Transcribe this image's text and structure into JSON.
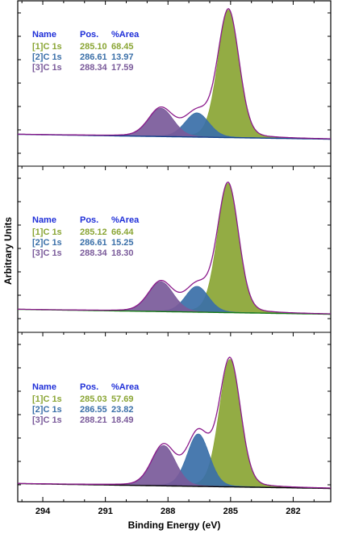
{
  "chart_data": {
    "type": "area",
    "xlabel": "Binding Energy (eV)",
    "ylabel": "Arbitrary Units",
    "x_reversed": true,
    "xlim": [
      295.2,
      280.2
    ],
    "xticks": [
      294,
      291,
      288,
      285,
      282
    ],
    "legend_headers": [
      "Name",
      "Pos.",
      "%Area"
    ],
    "colors": {
      "C1": "#8aa534",
      "C2": "#3a6fa8",
      "C3": "#7a5a9a",
      "envelope": "#8b1a8b",
      "background": [
        "#0e3f8a",
        "#137a13",
        "#000000"
      ]
    },
    "panels": [
      {
        "components": [
          {
            "name": "[1]C 1s",
            "pos": "285.10",
            "area": "68.45",
            "center": 285.1,
            "height": 158,
            "fwhm": 1.2
          },
          {
            "name": "[2]C 1s",
            "pos": "286.61",
            "area": "13.97",
            "center": 286.61,
            "height": 30,
            "fwhm": 1.35
          },
          {
            "name": "[3]C 1s",
            "pos": "288.34",
            "area": "17.59",
            "center": 288.34,
            "height": 35,
            "fwhm": 1.4
          }
        ]
      },
      {
        "components": [
          {
            "name": "[1]C 1s",
            "pos": "285.12",
            "area": "66.44",
            "center": 285.12,
            "height": 160,
            "fwhm": 1.2
          },
          {
            "name": "[2]C 1s",
            "pos": "286.61",
            "area": "15.25",
            "center": 286.61,
            "height": 32,
            "fwhm": 1.3
          },
          {
            "name": "[3]C 1s",
            "pos": "288.34",
            "area": "18.30",
            "center": 288.34,
            "height": 37,
            "fwhm": 1.4
          }
        ]
      },
      {
        "components": [
          {
            "name": "[1]C 1s",
            "pos": "285.03",
            "area": "57.69",
            "center": 285.03,
            "height": 158,
            "fwhm": 1.2
          },
          {
            "name": "[2]C 1s",
            "pos": "286.55",
            "area": "23.82",
            "center": 286.55,
            "height": 65,
            "fwhm": 1.25
          },
          {
            "name": "[3]C 1s",
            "pos": "288.21",
            "area": "18.49",
            "center": 288.21,
            "height": 50,
            "fwhm": 1.35
          }
        ]
      }
    ]
  }
}
